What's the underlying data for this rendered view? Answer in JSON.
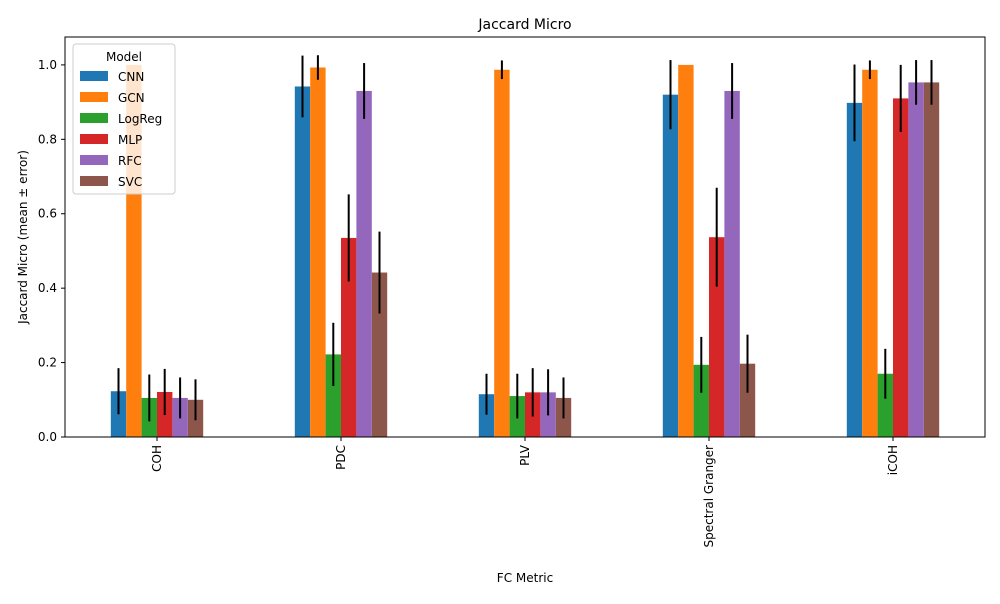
{
  "chart_data": {
    "type": "bar",
    "title": "Jaccard Micro",
    "xlabel": "FC Metric",
    "ylabel": "Jaccard Micro (mean ± error)",
    "ylim": [
      0,
      1.075
    ],
    "yticks": [
      "0.0",
      "0.2",
      "0.4",
      "0.6",
      "0.8",
      "1.0"
    ],
    "ytick_values": [
      0,
      0.2,
      0.4,
      0.6,
      0.8,
      1.0
    ],
    "categories": [
      "COH",
      "PDC",
      "PLV",
      "Spectral Granger",
      "iCOH"
    ],
    "legend": {
      "title": "Model",
      "placement": "top-left"
    },
    "grid": false,
    "series": [
      {
        "name": "CNN",
        "color": "#1f77b4",
        "values": [
          0.123,
          0.942,
          0.115,
          0.92,
          0.898
        ],
        "errors": [
          0.062,
          0.083,
          0.055,
          0.093,
          0.103
        ]
      },
      {
        "name": "GCN",
        "color": "#ff7f0e",
        "values": [
          1.0,
          0.993,
          0.987,
          1.0,
          0.987
        ],
        "errors": [
          0.0,
          0.033,
          0.025,
          0.0,
          0.025
        ]
      },
      {
        "name": "LogReg",
        "color": "#2ca02c",
        "values": [
          0.105,
          0.222,
          0.11,
          0.194,
          0.17
        ],
        "errors": [
          0.063,
          0.085,
          0.06,
          0.075,
          0.067
        ]
      },
      {
        "name": "MLP",
        "color": "#d62728",
        "values": [
          0.121,
          0.535,
          0.12,
          0.537,
          0.91
        ],
        "errors": [
          0.062,
          0.117,
          0.065,
          0.133,
          0.09
        ]
      },
      {
        "name": "RFC",
        "color": "#9467bd",
        "values": [
          0.105,
          0.93,
          0.12,
          0.93,
          0.953
        ],
        "errors": [
          0.055,
          0.075,
          0.062,
          0.075,
          0.06
        ]
      },
      {
        "name": "SVC",
        "color": "#8c564b",
        "values": [
          0.1,
          0.442,
          0.105,
          0.197,
          0.953
        ],
        "errors": [
          0.055,
          0.11,
          0.055,
          0.078,
          0.06
        ]
      }
    ]
  }
}
